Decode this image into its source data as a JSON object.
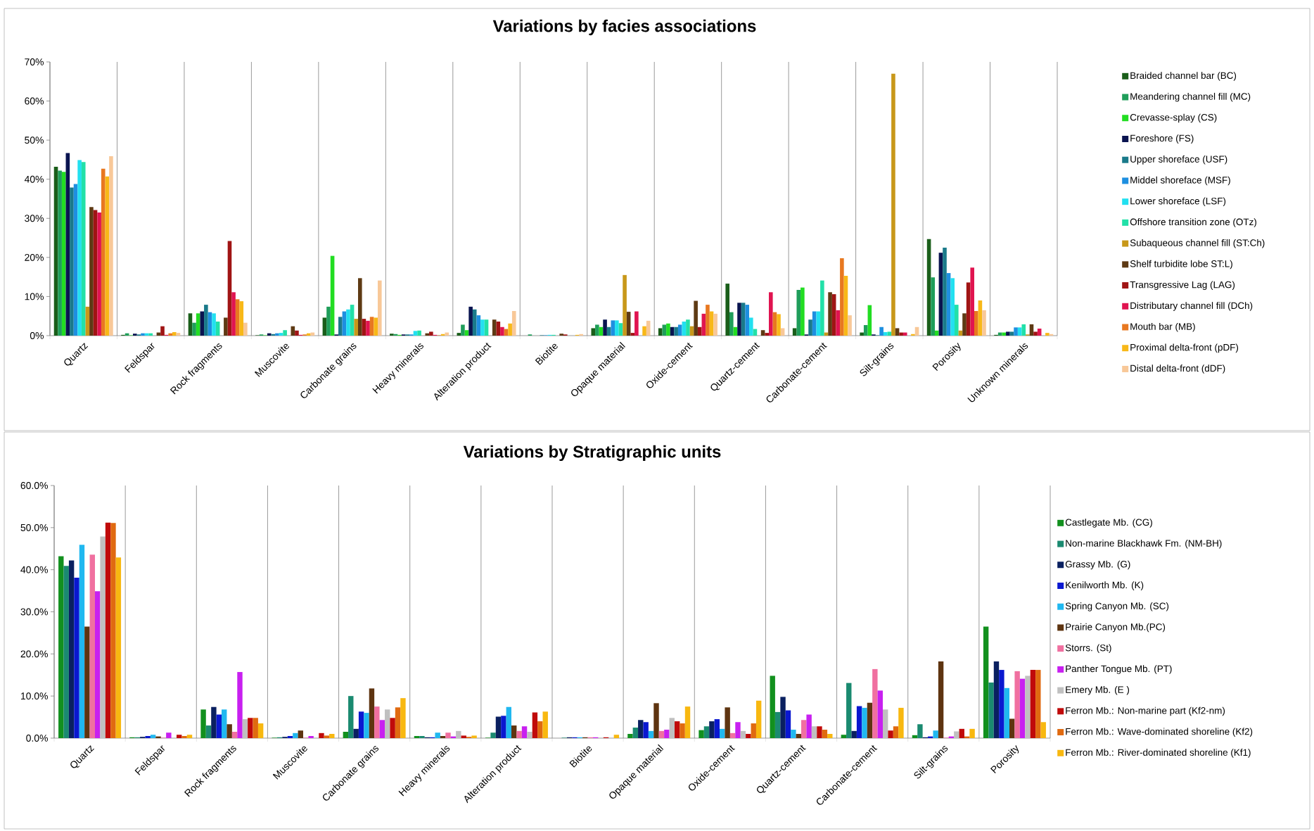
{
  "chart_data": [
    {
      "type": "bar",
      "title": "Variations by facies associations",
      "categories": [
        "Quartz",
        "Feldspar",
        "Rock fragments",
        "Muscovite",
        "Carbonate grains",
        "Heavy minerals",
        "Alteration product",
        "Biotite",
        "Opaque material",
        "Oxide-cement",
        "Quartz-cement",
        "Carbonate-cement",
        "Silt-grains",
        "Porosity",
        "Unknown minerals"
      ],
      "ylim": [
        0,
        70
      ],
      "yticks": [
        {
          "value": 0,
          "label": "0%"
        },
        {
          "value": 10,
          "label": "10%"
        },
        {
          "value": 20,
          "label": "20%"
        },
        {
          "value": 30,
          "label": "30%"
        },
        {
          "value": 40,
          "label": "40%"
        },
        {
          "value": 50,
          "label": "50%"
        },
        {
          "value": 60,
          "label": "60%"
        },
        {
          "value": 70,
          "label": "70%"
        }
      ],
      "grid": "x",
      "legend": "right",
      "series": [
        {
          "name": "Braided channel bar (BC)",
          "color": "#1a5e1a",
          "values": [
            43.2,
            0.2,
            5.7,
            0.1,
            4.6,
            0.5,
            0.7,
            0,
            1.9,
            1.9,
            13.3,
            1.9,
            0.8,
            24.7,
            0.2
          ]
        },
        {
          "name": "Meandering channel fill (MC)",
          "color": "#1f9e5a",
          "values": [
            42.2,
            0.6,
            3.3,
            0.3,
            7.4,
            0.4,
            2.8,
            0.3,
            2.8,
            2.8,
            6.0,
            11.7,
            2.7,
            14.9,
            0.8
          ]
        },
        {
          "name": "Crevasse-splay (CS)",
          "color": "#22dd22",
          "values": [
            41.9,
            0.1,
            5.7,
            0.1,
            20.4,
            0.2,
            1.4,
            0,
            2.2,
            3.1,
            2.2,
            12.3,
            7.8,
            1.3,
            0.8
          ]
        },
        {
          "name": "Foreshore (FS)",
          "color": "#0a1450",
          "values": [
            46.7,
            0.5,
            6.2,
            0.6,
            0.3,
            0.3,
            7.4,
            0,
            4.1,
            2.2,
            8.4,
            0.3,
            0.3,
            21.2,
            1.0
          ]
        },
        {
          "name": "Upper shoreface (USF)",
          "color": "#1a7a8a",
          "values": [
            37.9,
            0.3,
            7.9,
            0.4,
            4.8,
            0.3,
            6.7,
            0.1,
            2.2,
            2.2,
            8.4,
            4.1,
            0.1,
            22.5,
            1.0
          ]
        },
        {
          "name": "Middel shoreface (MSF)",
          "color": "#1e8fe0",
          "values": [
            38.8,
            0.6,
            6.0,
            0.6,
            6.2,
            0.3,
            5.2,
            0.1,
            3.9,
            2.8,
            7.9,
            6.2,
            2.2,
            16.0,
            2.1
          ]
        },
        {
          "name": "Lower shoreface (LSF)",
          "color": "#22e0f0",
          "values": [
            44.9,
            0.6,
            5.7,
            0.7,
            6.7,
            1.2,
            4.1,
            0.2,
            3.9,
            3.6,
            4.6,
            6.2,
            0.9,
            14.7,
            2.1
          ]
        },
        {
          "name": "Offshore transition zone (OTz)",
          "color": "#22e0a8",
          "values": [
            44.4,
            0.6,
            3.6,
            1.4,
            7.9,
            1.3,
            4.1,
            0.2,
            3.2,
            4.1,
            1.7,
            14.1,
            1.0,
            7.9,
            2.9
          ]
        },
        {
          "name": "Subaqueous channel fill (ST:Ch)",
          "color": "#c8981a",
          "values": [
            7.4,
            0,
            0,
            0,
            4.3,
            0,
            0,
            0,
            15.5,
            2.4,
            0,
            0.8,
            67.0,
            1.3,
            0.3
          ]
        },
        {
          "name": "Shelf turbidite lobe ST:L)",
          "color": "#5e3a14",
          "values": [
            32.9,
            0.8,
            4.6,
            2.4,
            14.7,
            0.6,
            4.1,
            0.5,
            6.1,
            8.9,
            1.4,
            11.1,
            1.9,
            5.7,
            2.9
          ]
        },
        {
          "name": "Transgressive Lag (LAG)",
          "color": "#a01414",
          "values": [
            32.1,
            2.4,
            24.2,
            1.3,
            4.3,
            1.0,
            3.6,
            0.3,
            0.7,
            2.2,
            0.7,
            10.6,
            0.8,
            13.6,
            1.0
          ]
        },
        {
          "name": "Distributary channel fill (DCh)",
          "color": "#e01450",
          "values": [
            31.5,
            0.2,
            11.1,
            0.2,
            3.8,
            0.2,
            2.2,
            0,
            6.2,
            5.6,
            11.1,
            6.5,
            0.8,
            17.4,
            1.8
          ]
        },
        {
          "name": "Mouth bar (MB)",
          "color": "#e87820",
          "values": [
            42.7,
            0.6,
            9.3,
            0.3,
            4.8,
            0.1,
            1.7,
            0,
            0,
            7.9,
            6.0,
            19.8,
            0,
            6.3,
            0
          ]
        },
        {
          "name": "Proximal delta-front (pDF)",
          "color": "#f8b818",
          "values": [
            40.7,
            0.9,
            8.8,
            0.6,
            4.6,
            0.4,
            3.1,
            0.2,
            2.4,
            6.2,
            5.5,
            15.3,
            0.4,
            9.0,
            0.7
          ]
        },
        {
          "name": "Distal delta-front (dDF)",
          "color": "#f8c898",
          "values": [
            45.9,
            0.7,
            3.3,
            0.8,
            14.1,
            0.8,
            6.3,
            0.4,
            3.8,
            5.6,
            1.9,
            5.2,
            2.2,
            6.5,
            0.4
          ]
        }
      ]
    },
    {
      "type": "bar",
      "title": "Variations by Stratigraphic units",
      "categories": [
        "Quartz",
        "Feldspar",
        "Rock fragments",
        "Muscovite",
        "Carbonate grains",
        "Heavy minerals",
        "Alteration product",
        "Biotite",
        "Opaque material",
        "Oxide-cement",
        "Quartz-cement",
        "Carbonate-cement",
        "Silt-grains",
        "Porosity"
      ],
      "ylim": [
        0,
        60
      ],
      "yticks": [
        {
          "value": 0,
          "label": "0.0%"
        },
        {
          "value": 10,
          "label": "10.0%"
        },
        {
          "value": 20,
          "label": "20.0%"
        },
        {
          "value": 30,
          "label": "30.0%"
        },
        {
          "value": 40,
          "label": "40.0%"
        },
        {
          "value": 50,
          "label": "50.0%"
        },
        {
          "value": 60,
          "label": "60.0%"
        }
      ],
      "grid": "x",
      "legend": "right",
      "series": [
        {
          "name": "Castlegate Mb. (CG)",
          "color": "#12901e",
          "values": [
            43.2,
            0.2,
            6.8,
            0.1,
            1.5,
            0.5,
            0.1,
            0,
            1.0,
            1.9,
            14.8,
            0.8,
            0.7,
            26.5
          ]
        },
        {
          "name": "Non-marine Blackhawk Fm. (NM-BH)",
          "color": "#1a8a70",
          "values": [
            40.9,
            0.2,
            3.0,
            0.2,
            10.0,
            0.5,
            1.3,
            0.1,
            2.5,
            2.8,
            6.2,
            13.1,
            3.3,
            13.2
          ]
        },
        {
          "name": "Grassy Mb. (G)",
          "color": "#0a2060",
          "values": [
            42.2,
            0.3,
            7.4,
            0.3,
            2.2,
            0.2,
            5.1,
            0.2,
            4.3,
            4.0,
            9.8,
            1.7,
            0.2,
            18.2
          ]
        },
        {
          "name": "Kenilworth Mb. (K)",
          "color": "#0a18d0",
          "values": [
            38.1,
            0.5,
            5.6,
            0.5,
            6.3,
            0.2,
            5.3,
            0.2,
            3.8,
            4.5,
            6.6,
            7.6,
            0.4,
            16.2
          ]
        },
        {
          "name": "Spring Canyon Mb. (SC)",
          "color": "#20b8f0",
          "values": [
            45.9,
            0.8,
            6.8,
            1.2,
            6.0,
            1.3,
            7.4,
            0.2,
            1.7,
            2.2,
            2.0,
            7.2,
            1.8,
            11.9
          ]
        },
        {
          "name": "Prairie Canyon Mb.(PC)",
          "color": "#5e3410",
          "values": [
            26.5,
            0.4,
            3.3,
            1.8,
            11.8,
            0.5,
            3.0,
            0.2,
            8.3,
            7.3,
            1.0,
            8.4,
            18.2,
            4.6
          ]
        },
        {
          "name": "Storrs. (St)",
          "color": "#f070a0",
          "values": [
            43.6,
            0.1,
            1.5,
            0.1,
            7.5,
            1.3,
            1.7,
            0.2,
            1.7,
            1.2,
            4.3,
            16.4,
            0.1,
            15.9
          ]
        },
        {
          "name": "Panther Tongue Mb. (PT)",
          "color": "#c820f0",
          "values": [
            34.9,
            1.3,
            15.7,
            0.5,
            4.3,
            0.4,
            2.8,
            0.2,
            2.0,
            3.8,
            5.6,
            11.3,
            0.4,
            14.1
          ]
        },
        {
          "name": "Emery Mb. (E )",
          "color": "#c0c0c0",
          "values": [
            47.9,
            null,
            4.5,
            null,
            6.8,
            1.7,
            1.5,
            null,
            4.8,
            1.7,
            2.8,
            6.8,
            1.6,
            14.8
          ]
        },
        {
          "name": "Ferron Mb.: Non-marine part (Kf2-nm)",
          "color": "#c00a0a",
          "values": [
            51.2,
            0.8,
            4.8,
            1.2,
            4.8,
            0.6,
            6.1,
            0.2,
            4.0,
            1.0,
            2.8,
            1.8,
            2.2,
            16.2
          ]
        },
        {
          "name": "Ferron Mb.: Wave-dominated shoreline (Kf2)",
          "color": "#e06a10",
          "values": [
            51.1,
            0.5,
            4.8,
            0.6,
            7.3,
            0.3,
            4.0,
            0,
            3.5,
            3.5,
            2.0,
            2.8,
            0.4,
            16.2
          ]
        },
        {
          "name": "Ferron Mb.: River-dominated shoreline (Kf1)",
          "color": "#f8b810",
          "values": [
            42.9,
            0.8,
            3.5,
            1.0,
            9.5,
            0.6,
            6.3,
            0.8,
            7.5,
            8.9,
            1.0,
            7.2,
            2.2,
            3.8
          ]
        }
      ]
    }
  ]
}
